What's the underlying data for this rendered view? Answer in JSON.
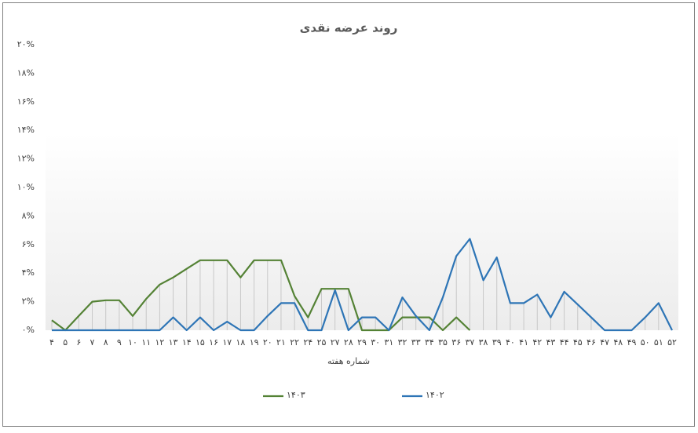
{
  "chart_data": {
    "type": "line",
    "title": "روند عرضه نقدی",
    "x_label": "شماره هفته",
    "categories": [
      "۴",
      "۵",
      "۶",
      "۷",
      "۸",
      "۹",
      "۱۰",
      "۱۱",
      "۱۲",
      "۱۳",
      "۱۴",
      "۱۵",
      "۱۶",
      "۱۷",
      "۱۸",
      "۱۹",
      "۲۰",
      "۲۱",
      "۲۲",
      "۲۴",
      "۲۵",
      "۲۷",
      "۲۸",
      "۲۹",
      "۳۰",
      "۳۱",
      "۳۲",
      "۳۳",
      "۳۴",
      "۳۵",
      "۳۶",
      "۳۷",
      "۳۸",
      "۳۹",
      "۴۰",
      "۴۱",
      "۴۲",
      "۴۳",
      "۴۴",
      "۴۵",
      "۴۶",
      "۴۷",
      "۴۸",
      "۴۹",
      "۵۰",
      "۵۱",
      "۵۲"
    ],
    "series": [
      {
        "name": "۱۴۰۳",
        "color": "#548235",
        "values": [
          0.7,
          0,
          1.0,
          2.0,
          2.1,
          2.1,
          1.0,
          2.2,
          3.2,
          3.7,
          4.3,
          4.9,
          4.9,
          4.9,
          3.7,
          4.9,
          4.9,
          4.9,
          2.4,
          0.9,
          2.9,
          2.9,
          2.9,
          0,
          0,
          0,
          0.9,
          0.9,
          0.9,
          0,
          0.9,
          0,
          null,
          null,
          null,
          null,
          null,
          null,
          null,
          null,
          null,
          null,
          null,
          null,
          null,
          null,
          null
        ]
      },
      {
        "name": "۱۴۰۲",
        "color": "#2e75b6",
        "values": [
          0,
          0,
          0,
          0,
          0,
          0,
          0,
          0,
          0,
          0.9,
          0,
          0.9,
          0,
          0.6,
          0,
          0,
          1.0,
          1.9,
          1.9,
          0,
          0,
          2.8,
          0,
          0.9,
          0.9,
          0,
          2.3,
          1.0,
          0,
          2.3,
          5.2,
          6.4,
          3.5,
          5.1,
          1.9,
          1.9,
          2.5,
          0.9,
          2.7,
          1.8,
          0.9,
          0,
          0,
          0,
          0.9,
          1.9,
          0
        ]
      }
    ],
    "ylim": [
      0,
      20
    ],
    "yticks": [
      {
        "value": 0,
        "label": "۰%"
      },
      {
        "value": 2,
        "label": "۲%"
      },
      {
        "value": 4,
        "label": "۴%"
      },
      {
        "value": 6,
        "label": "۶%"
      },
      {
        "value": 8,
        "label": "۸%"
      },
      {
        "value": 10,
        "label": "۱۰%"
      },
      {
        "value": 12,
        "label": "۱۲%"
      },
      {
        "value": 14,
        "label": "۱۴%"
      },
      {
        "value": 16,
        "label": "۱۶%"
      },
      {
        "value": 18,
        "label": "۱۸%"
      },
      {
        "value": 20,
        "label": "۲۰%"
      }
    ],
    "drop_lines": true
  }
}
